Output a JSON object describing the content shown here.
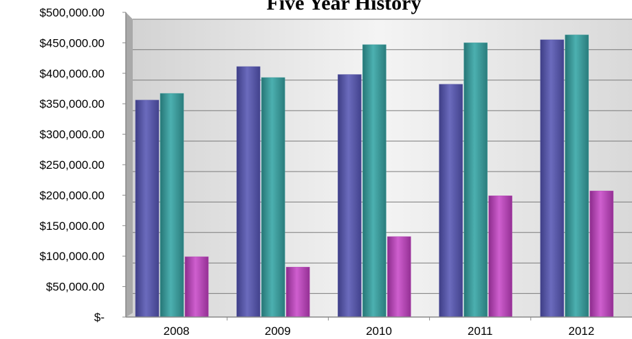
{
  "chart_data": {
    "type": "bar",
    "title": "Five Year History",
    "xlabel": "",
    "ylabel": "",
    "categories": [
      "2008",
      "2009",
      "2010",
      "2011",
      "2012"
    ],
    "series": [
      {
        "values": [
          356000,
          411000,
          398000,
          382000,
          455000
        ]
      },
      {
        "values": [
          367000,
          393000,
          447000,
          450000,
          463000
        ]
      },
      {
        "values": [
          99000,
          82000,
          132000,
          199000,
          207000
        ]
      }
    ],
    "ylim": [
      0,
      500000
    ],
    "y_ticks": [
      {
        "value": 0,
        "label": "$-"
      },
      {
        "value": 50000,
        "label": "$50,000.00"
      },
      {
        "value": 100000,
        "label": "$100,000.00"
      },
      {
        "value": 150000,
        "label": "$150,000.00"
      },
      {
        "value": 200000,
        "label": "$200,000.00"
      },
      {
        "value": 250000,
        "label": "$250,000.00"
      },
      {
        "value": 300000,
        "label": "$300,000.00"
      },
      {
        "value": 350000,
        "label": "$350,000.00"
      },
      {
        "value": 400000,
        "label": "$400,000.00"
      },
      {
        "value": 450000,
        "label": "$450,000.00"
      },
      {
        "value": 500000,
        "label": "$500,000.00"
      }
    ],
    "grid": true,
    "legend": "none",
    "colors": [
      "#5a5aa8",
      "#3d9b9b",
      "#b44ab4"
    ]
  }
}
